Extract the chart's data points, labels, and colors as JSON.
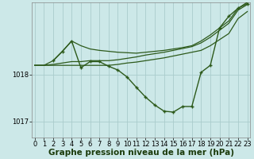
{
  "bg_color": "#cce8e8",
  "grid_color": "#aacccc",
  "line_color": "#2d5a1b",
  "marker_color": "#2d5a1b",
  "xlabel": "Graphe pression niveau de la mer (hPa)",
  "xlabel_fontsize": 7.5,
  "tick_fontsize": 6,
  "yticks": [
    1017,
    1018
  ],
  "ylim": [
    1016.65,
    1019.55
  ],
  "xlim": [
    -0.3,
    23.3
  ],
  "xticks": [
    0,
    1,
    2,
    3,
    4,
    5,
    6,
    7,
    8,
    9,
    10,
    11,
    12,
    13,
    14,
    15,
    16,
    17,
    18,
    19,
    20,
    21,
    22,
    23
  ],
  "series": [
    {
      "x": [
        0,
        1,
        2,
        3,
        4,
        5,
        6,
        7,
        8,
        9,
        10,
        11,
        12,
        13,
        14,
        15,
        16,
        17,
        18,
        19,
        20,
        21,
        22,
        23
      ],
      "y": [
        1018.2,
        1018.2,
        1018.2,
        1018.2,
        1018.2,
        1018.2,
        1018.2,
        1018.2,
        1018.2,
        1018.22,
        1018.25,
        1018.27,
        1018.3,
        1018.33,
        1018.36,
        1018.4,
        1018.44,
        1018.48,
        1018.52,
        1018.62,
        1018.75,
        1018.88,
        1019.2,
        1019.35
      ],
      "has_markers": false,
      "lw": 0.9
    },
    {
      "x": [
        0,
        1,
        2,
        3,
        4,
        5,
        6,
        7,
        8,
        9,
        10,
        11,
        12,
        13,
        14,
        15,
        16,
        17,
        18,
        19,
        20,
        21,
        22,
        23
      ],
      "y": [
        1018.2,
        1018.2,
        1018.22,
        1018.25,
        1018.28,
        1018.28,
        1018.3,
        1018.3,
        1018.3,
        1018.32,
        1018.35,
        1018.38,
        1018.42,
        1018.45,
        1018.48,
        1018.52,
        1018.56,
        1018.6,
        1018.68,
        1018.8,
        1018.95,
        1019.1,
        1019.38,
        1019.5
      ],
      "has_markers": false,
      "lw": 0.9
    },
    {
      "x": [
        0,
        1,
        2,
        3,
        4,
        5,
        6,
        7,
        8,
        9,
        10,
        11,
        12,
        13,
        14,
        15,
        16,
        17,
        18,
        19,
        20,
        21,
        22,
        23
      ],
      "y": [
        1018.2,
        1018.2,
        1018.3,
        1018.5,
        1018.72,
        1018.62,
        1018.55,
        1018.52,
        1018.5,
        1018.48,
        1018.47,
        1018.46,
        1018.48,
        1018.5,
        1018.52,
        1018.55,
        1018.58,
        1018.62,
        1018.72,
        1018.85,
        1019.0,
        1019.15,
        1019.42,
        1019.55
      ],
      "has_markers": false,
      "lw": 0.9
    },
    {
      "x": [
        2,
        3,
        4,
        5,
        6,
        7,
        8,
        9,
        10,
        11,
        12,
        13,
        14,
        15,
        16,
        17,
        18,
        19,
        20,
        21,
        22,
        23
      ],
      "y": [
        1018.3,
        1018.5,
        1018.72,
        1018.15,
        1018.28,
        1018.28,
        1018.18,
        1018.1,
        1017.95,
        1017.73,
        1017.52,
        1017.35,
        1017.22,
        1017.2,
        1017.32,
        1017.32,
        1018.05,
        1018.2,
        1019.0,
        1019.25,
        1019.42,
        1019.52
      ],
      "has_markers": true,
      "lw": 1.0
    }
  ]
}
